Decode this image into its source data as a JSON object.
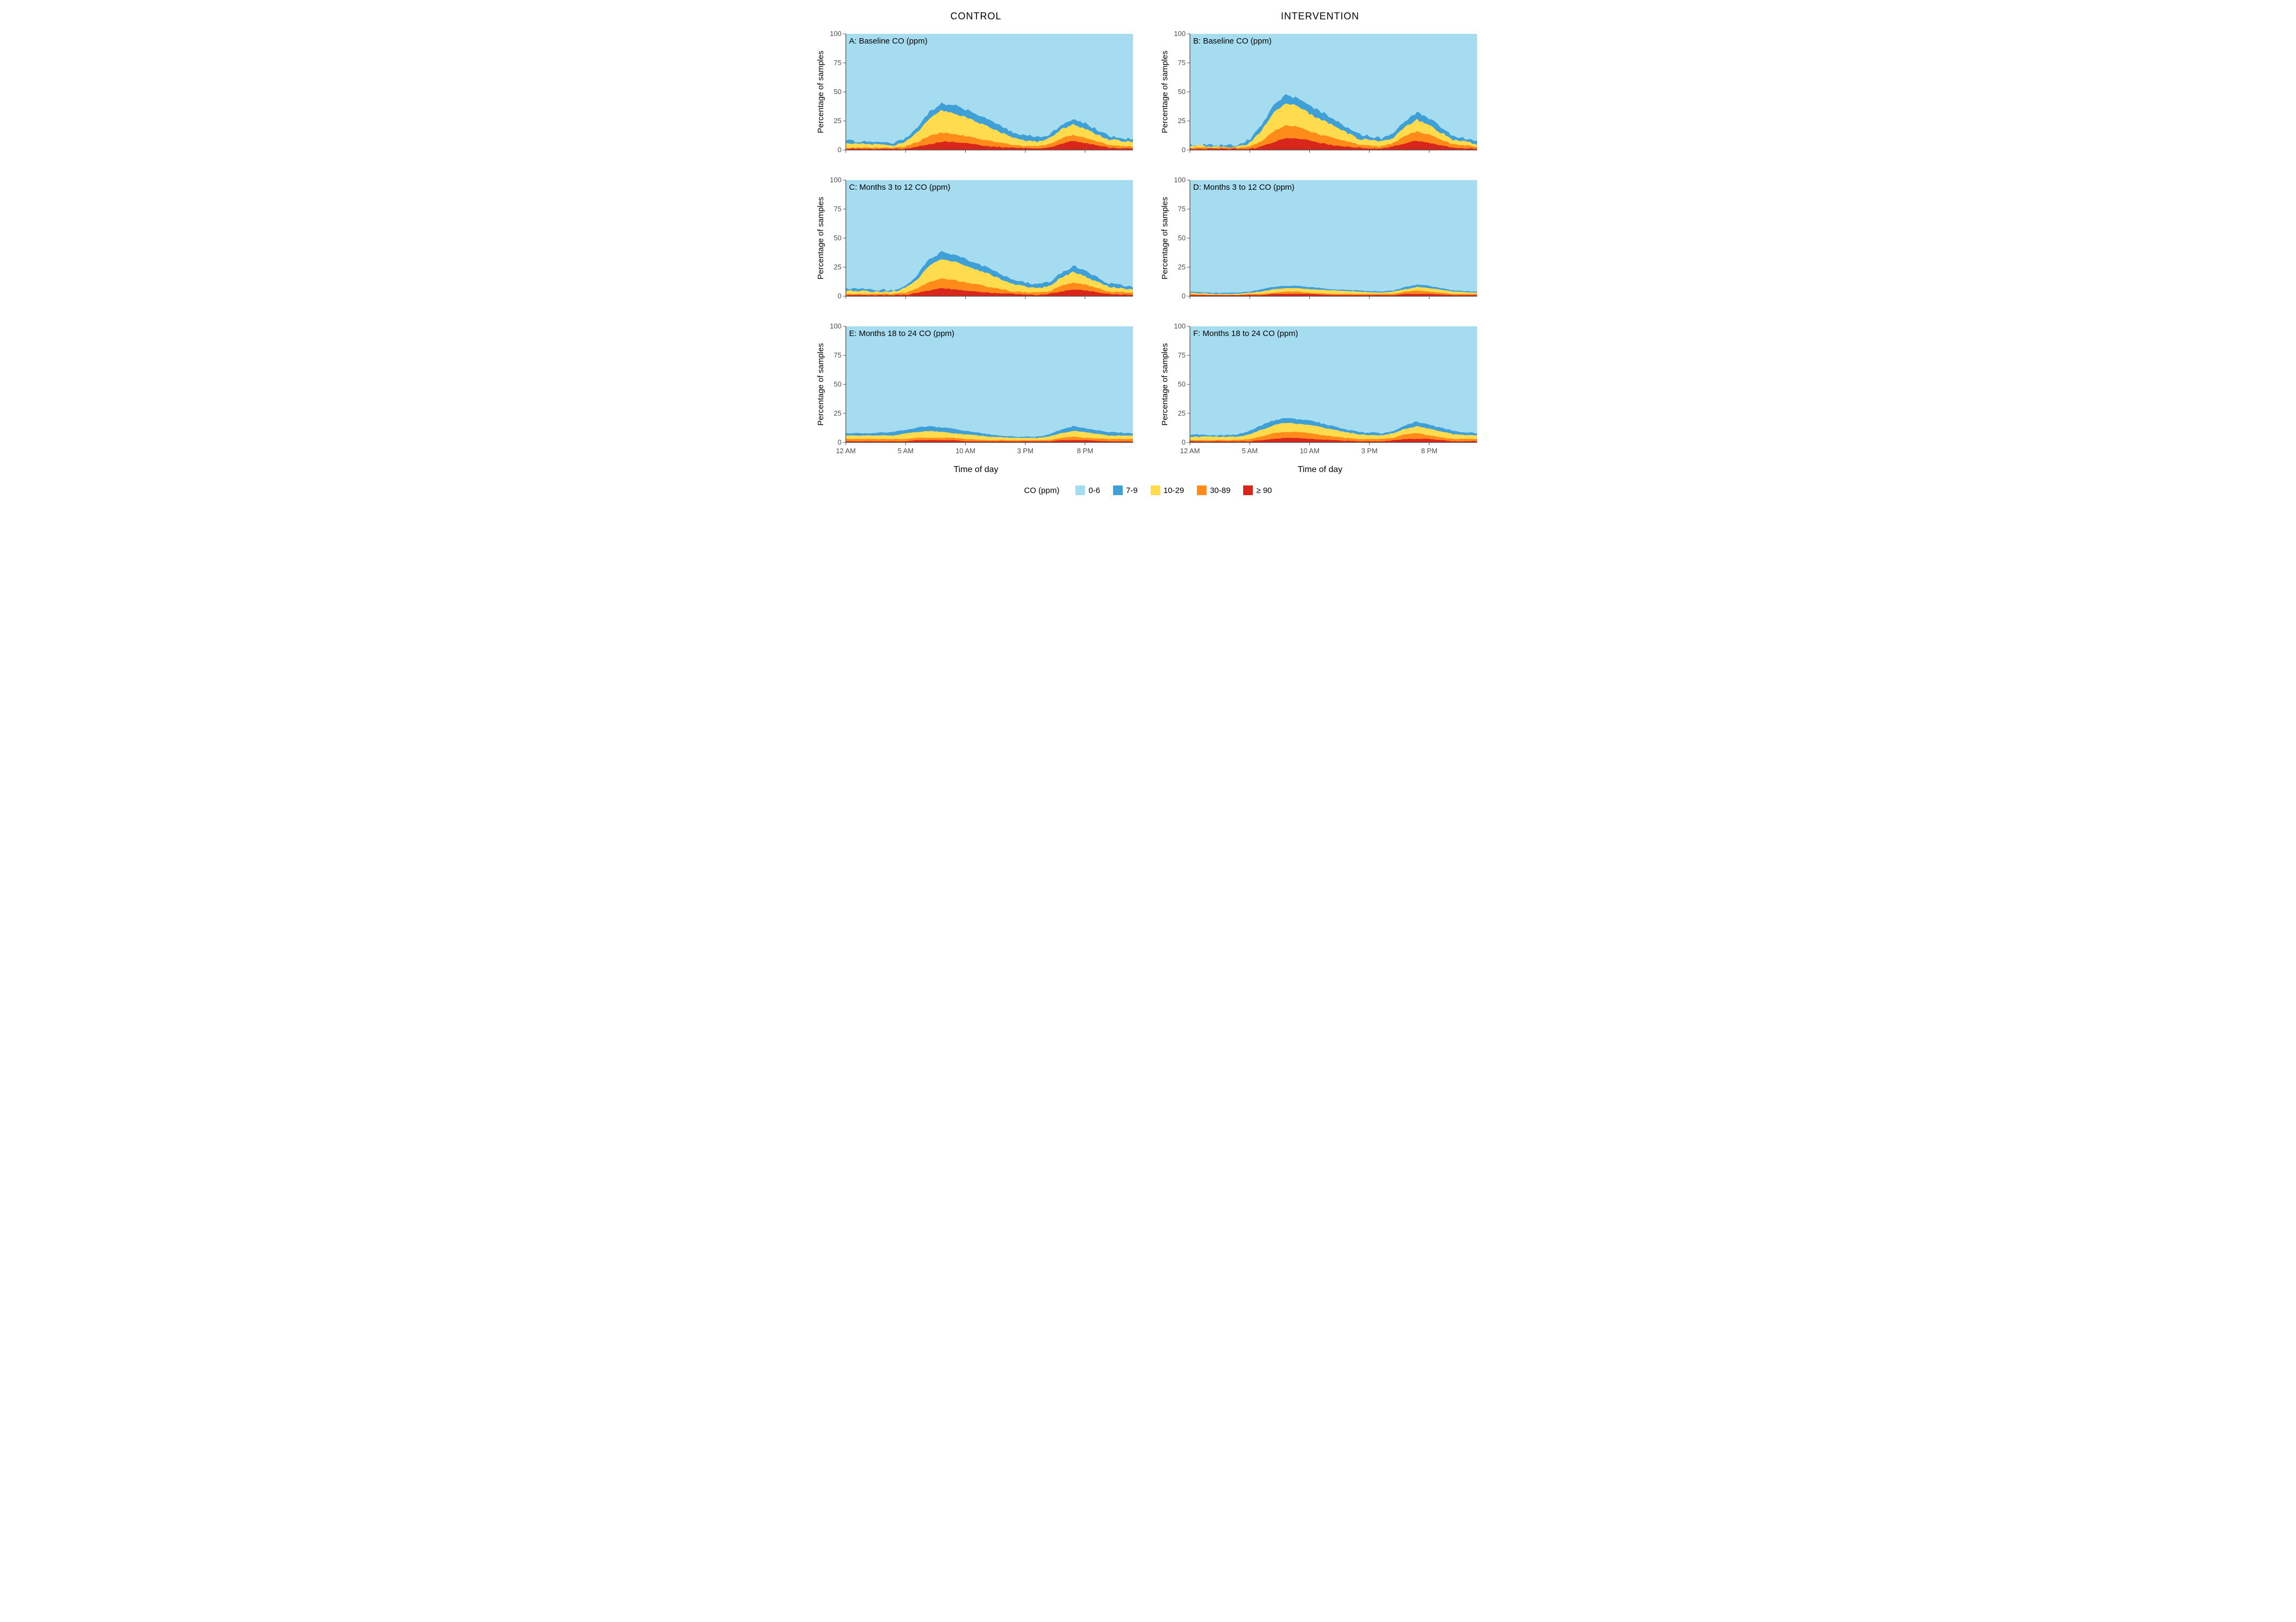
{
  "columns": {
    "left": "CONTROL",
    "right": "INTERVENTION"
  },
  "ylabel": "Percentage of samples",
  "xlabel": "Time of day",
  "ylim": [
    0,
    100
  ],
  "yticks": [
    0,
    25,
    50,
    75,
    100
  ],
  "xticks_hours": [
    0,
    5,
    10,
    15,
    20
  ],
  "xtick_labels": [
    "12 AM",
    "5 AM",
    "10 AM",
    "3 PM",
    "8 PM"
  ],
  "panel_title_fontsize": 15,
  "axis_fontsize": 15,
  "tick_fontsize": 13,
  "text_color": "#4d4d4d",
  "background_color": "#ffffff",
  "axis_color": "#4d4d4d",
  "legend": {
    "title": "CO (ppm)",
    "items": [
      {
        "label": "0-6",
        "color": "#a6dcef"
      },
      {
        "label": "7-9",
        "color": "#3fa0d8"
      },
      {
        "label": "10-29",
        "color": "#ffdb4d"
      },
      {
        "label": "30-89",
        "color": "#ff8c1a"
      },
      {
        "label": "≥ 90",
        "color": "#d9261c"
      }
    ]
  },
  "band_colors": {
    "bg": "#a6dcef",
    "b79": "#3fa0d8",
    "b1029": "#ffdb4d",
    "b3089": "#ff8c1a",
    "b90": "#d9261c"
  },
  "panels": [
    {
      "key": "A",
      "title": "A: Baseline CO (ppm)",
      "col": "left",
      "hours": [
        0,
        2,
        4,
        5,
        6,
        7,
        8,
        9,
        10,
        12,
        14,
        16,
        17,
        18,
        19,
        20,
        22,
        24
      ],
      "top79": [
        8,
        7,
        6,
        10,
        20,
        33,
        40,
        39,
        35,
        26,
        15,
        11,
        13,
        22,
        27,
        23,
        12,
        9
      ],
      "top1029": [
        6,
        5,
        4,
        7,
        15,
        27,
        34,
        32,
        28,
        20,
        10,
        7,
        10,
        18,
        22,
        18,
        9,
        7
      ],
      "top3089": [
        2,
        2,
        2,
        3,
        7,
        12,
        15,
        14,
        12,
        8,
        4,
        3,
        5,
        10,
        13,
        11,
        4,
        3
      ],
      "top90": [
        1,
        1,
        1,
        1,
        3,
        5,
        7,
        7,
        6,
        3,
        2,
        1,
        2,
        5,
        8,
        6,
        2,
        1
      ]
    },
    {
      "key": "B",
      "title": "B: Baseline CO (ppm)",
      "col": "right",
      "hours": [
        0,
        2,
        4,
        5,
        6,
        7,
        8,
        9,
        10,
        12,
        14,
        16,
        17,
        18,
        19,
        20,
        22,
        24
      ],
      "top79": [
        5,
        4,
        4,
        9,
        22,
        38,
        47,
        45,
        38,
        27,
        14,
        10,
        14,
        25,
        32,
        27,
        12,
        7
      ],
      "top1029": [
        4,
        3,
        3,
        6,
        17,
        32,
        40,
        38,
        31,
        21,
        10,
        7,
        11,
        20,
        26,
        21,
        9,
        5
      ],
      "top3089": [
        2,
        2,
        2,
        3,
        8,
        16,
        21,
        20,
        16,
        10,
        5,
        3,
        6,
        12,
        16,
        13,
        5,
        3
      ],
      "top90": [
        1,
        1,
        1,
        1,
        3,
        7,
        10,
        10,
        8,
        4,
        2,
        1,
        3,
        6,
        8,
        6,
        2,
        1
      ]
    },
    {
      "key": "C",
      "title": "C: Months 3 to 12 CO (ppm)",
      "col": "left",
      "hours": [
        0,
        2,
        4,
        5,
        6,
        7,
        8,
        9,
        10,
        12,
        14,
        16,
        17,
        18,
        19,
        20,
        22,
        24
      ],
      "top79": [
        7,
        6,
        5,
        9,
        19,
        32,
        38,
        36,
        32,
        24,
        14,
        10,
        12,
        20,
        26,
        22,
        11,
        8
      ],
      "top1029": [
        5,
        4,
        4,
        7,
        15,
        26,
        32,
        30,
        26,
        19,
        10,
        7,
        9,
        16,
        21,
        17,
        8,
        6
      ],
      "top3089": [
        2,
        2,
        2,
        3,
        7,
        12,
        15,
        14,
        12,
        8,
        4,
        3,
        4,
        9,
        12,
        10,
        4,
        3
      ],
      "top90": [
        1,
        1,
        1,
        1,
        3,
        5,
        7,
        6,
        5,
        3,
        2,
        1,
        2,
        4,
        6,
        5,
        2,
        1
      ]
    },
    {
      "key": "D",
      "title": "D: Months 3 to 12 CO (ppm)",
      "col": "right",
      "hours": [
        0,
        2,
        4,
        5,
        6,
        7,
        8,
        9,
        10,
        12,
        14,
        16,
        17,
        18,
        19,
        20,
        22,
        24
      ],
      "top79": [
        4,
        3,
        3,
        4,
        6,
        8,
        9,
        9,
        8,
        6,
        5,
        4,
        5,
        8,
        10,
        9,
        5,
        4
      ],
      "top1029": [
        3,
        2,
        2,
        3,
        4,
        6,
        7,
        7,
        6,
        5,
        4,
        3,
        4,
        6,
        8,
        7,
        4,
        3
      ],
      "top3089": [
        2,
        1,
        1,
        2,
        2,
        3,
        4,
        4,
        3,
        2,
        2,
        2,
        2,
        4,
        5,
        4,
        2,
        2
      ],
      "top90": [
        1,
        1,
        1,
        1,
        1,
        2,
        2,
        2,
        2,
        1,
        1,
        1,
        1,
        2,
        2,
        2,
        1,
        1
      ]
    },
    {
      "key": "E",
      "title": "E: Months 18 to 24 CO (ppm)",
      "col": "left",
      "hours": [
        0,
        2,
        4,
        5,
        6,
        7,
        8,
        9,
        10,
        12,
        14,
        16,
        17,
        18,
        19,
        20,
        22,
        24
      ],
      "top79": [
        8,
        8,
        9,
        11,
        13,
        14,
        13,
        12,
        10,
        7,
        5,
        5,
        7,
        11,
        14,
        12,
        9,
        8
      ],
      "top1029": [
        6,
        6,
        6,
        8,
        9,
        10,
        9,
        8,
        7,
        5,
        4,
        4,
        5,
        8,
        10,
        9,
        6,
        6
      ],
      "top3089": [
        3,
        3,
        3,
        3,
        4,
        4,
        4,
        4,
        3,
        2,
        2,
        2,
        2,
        4,
        5,
        4,
        3,
        3
      ],
      "top90": [
        1,
        1,
        1,
        1,
        2,
        2,
        2,
        2,
        1,
        1,
        1,
        1,
        1,
        2,
        2,
        2,
        1,
        1
      ]
    },
    {
      "key": "F",
      "title": "F: Months 18 to 24 CO (ppm)",
      "col": "right",
      "hours": [
        0,
        2,
        4,
        5,
        6,
        7,
        8,
        9,
        10,
        12,
        14,
        16,
        17,
        18,
        19,
        20,
        22,
        24
      ],
      "top79": [
        7,
        6,
        7,
        10,
        15,
        19,
        21,
        20,
        19,
        14,
        9,
        8,
        10,
        15,
        18,
        15,
        10,
        8
      ],
      "top1029": [
        5,
        5,
        5,
        7,
        11,
        15,
        17,
        16,
        15,
        11,
        7,
        6,
        8,
        12,
        14,
        12,
        7,
        6
      ],
      "top3089": [
        2,
        2,
        2,
        3,
        5,
        8,
        9,
        9,
        8,
        5,
        3,
        3,
        4,
        7,
        8,
        6,
        3,
        3
      ],
      "top90": [
        1,
        1,
        1,
        1,
        2,
        3,
        4,
        4,
        3,
        2,
        1,
        1,
        2,
        3,
        3,
        3,
        1,
        1
      ]
    }
  ]
}
